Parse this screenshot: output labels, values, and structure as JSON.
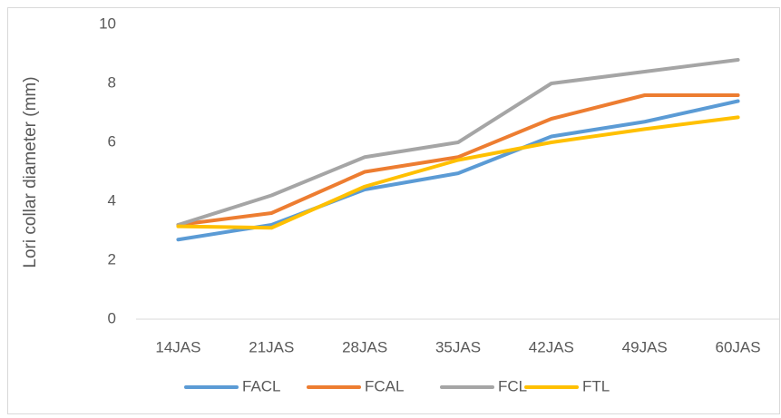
{
  "chart_data": {
    "type": "line",
    "y_label": "Lori collar diameter  (mm)",
    "categories": [
      "14JAS",
      "21JAS",
      "28JAS",
      "35JAS",
      "42JAS",
      "49JAS",
      "60JAS"
    ],
    "series": [
      {
        "name": "FACL",
        "color": "#5b9bd5",
        "values": [
          2.7,
          3.2,
          4.4,
          4.95,
          6.2,
          6.7,
          7.4
        ]
      },
      {
        "name": "FCAL",
        "color": "#ed7d31",
        "values": [
          3.2,
          3.6,
          5.0,
          5.5,
          6.8,
          7.6,
          7.6
        ]
      },
      {
        "name": "FCL",
        "color": "#a5a5a5",
        "values": [
          3.2,
          4.2,
          5.5,
          6.0,
          8.0,
          8.4,
          8.8
        ]
      },
      {
        "name": "FTL",
        "color": "#ffc000",
        "values": [
          3.15,
          3.1,
          4.5,
          5.4,
          6.0,
          6.45,
          6.85
        ]
      }
    ],
    "ylim": [
      0,
      10
    ],
    "yticks": [
      0,
      2,
      4,
      6,
      8,
      10
    ],
    "grid": false,
    "legend": "bottom"
  }
}
